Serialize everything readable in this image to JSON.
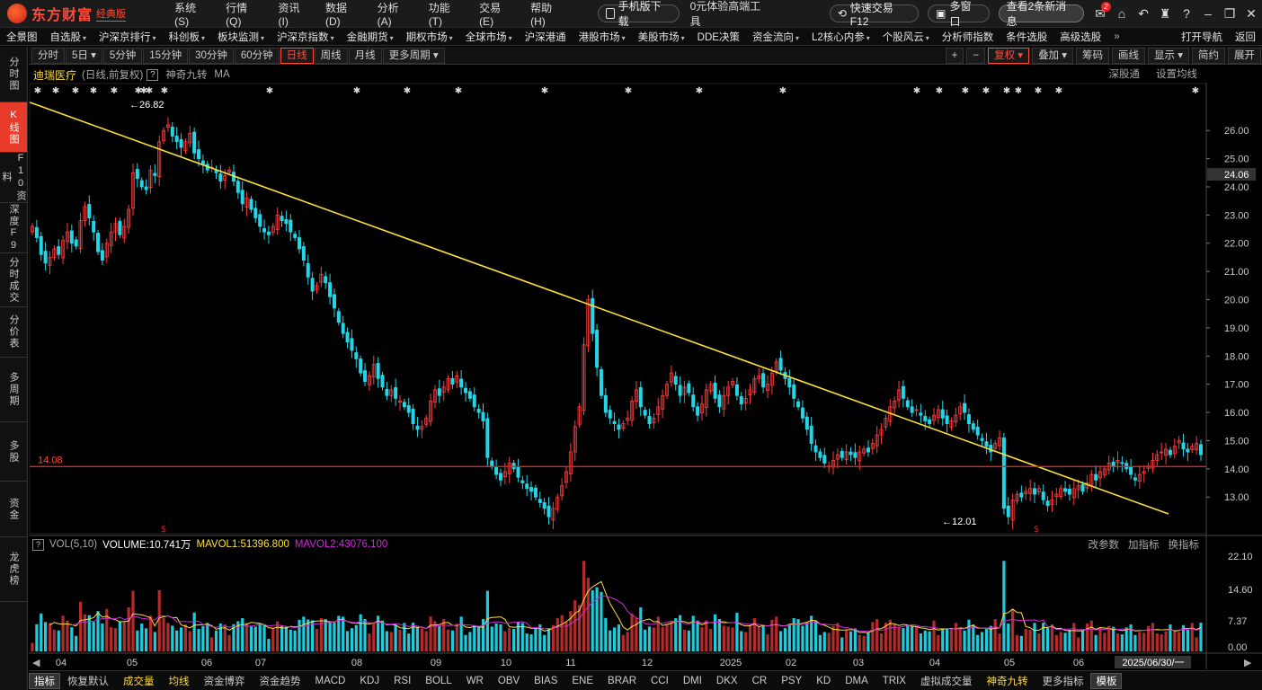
{
  "app": {
    "logo_text": "东方财富",
    "logo_sub": "经典版",
    "menu": [
      "系统(S)",
      "行情(Q)",
      "资讯(I)",
      "数据(D)",
      "分析(A)",
      "功能(T)",
      "交易(E)",
      "帮助(H)"
    ],
    "mobile_btn": "手机版下载",
    "promo": "0元体验高端工具",
    "quick_trade": "快速交易F12",
    "multi_window": "多窗口",
    "news_btn": "查看2条新消息",
    "mail_badge": "2"
  },
  "navbar": {
    "items": [
      "全景图",
      "自选股",
      "沪深京排行",
      "科创板",
      "板块监测",
      "沪深京指数",
      "金融期货",
      "期权市场",
      "全球市场",
      "沪深港通",
      "港股市场",
      "美股市场",
      "DDE决策",
      "资金流向",
      "L2核心内参",
      "个股风云",
      "分析师指数",
      "条件选股",
      "高级选股"
    ],
    "more": "»",
    "right": [
      "打开导航",
      "返回"
    ]
  },
  "sidebar": [
    "分时图",
    "K线图",
    "F10资料",
    "深度F9",
    "分时成交",
    "分价表",
    "多周期",
    "多股",
    "资金",
    "龙虎榜"
  ],
  "period_toolbar": {
    "items": [
      "分时",
      "5日",
      "5分钟",
      "15分钟",
      "30分钟",
      "60分钟",
      "日线",
      "周线",
      "月线",
      "更多周期"
    ],
    "active": "日线",
    "right": [
      "+",
      "−",
      "复权",
      "叠加",
      "筹码",
      "画线",
      "显示",
      "简约",
      "展开"
    ]
  },
  "chart_head": {
    "stock_name": "迪瑞医疗",
    "mode": "(日线,前复权)",
    "help": "?",
    "indicators": [
      "神奇九转",
      "MA"
    ],
    "right": [
      "深股通",
      "设置均线"
    ]
  },
  "vol_head": {
    "name": "VOL(5,10)",
    "volume": "VOLUME:10.741万",
    "mavol1": "MAVOL1:51396.800",
    "mavol2": "MAVOL2:43076.100",
    "right": [
      "改参数",
      "加指标",
      "换指标"
    ]
  },
  "bottom_tabs": [
    "指标",
    "恢复默认",
    "成交量",
    "均线",
    "资金博弈",
    "资金趋势",
    "MACD",
    "KDJ",
    "RSI",
    "BOLL",
    "WR",
    "OBV",
    "BIAS",
    "ENE",
    "BRAR",
    "CCI",
    "DMI",
    "DKX",
    "CR",
    "PSY",
    "KD",
    "DMA",
    "TRIX",
    "虚拟成交量",
    "神奇九转",
    "更多指标",
    "模板"
  ],
  "colors": {
    "up": "#ff3d3d",
    "down": "#22d6e8",
    "trend": "#ffe03a",
    "support": "#e82020",
    "ma1": "#ffe03a",
    "ma2": "#d02bd8"
  },
  "chart_data": {
    "type": "candlestick",
    "y_ticks": [
      "26.00",
      "25.00",
      "24.00",
      "23.00",
      "22.00",
      "21.00",
      "20.00",
      "19.00",
      "18.00",
      "17.00",
      "16.00",
      "15.00",
      "14.00",
      "13.00"
    ],
    "ylim": [
      11.7,
      27.6
    ],
    "current_price": "24.06",
    "support_label": "14.08",
    "support_value": 14.08,
    "high_label": "←26.82",
    "low_label": "←12.01",
    "x_labels": [
      "04",
      "05",
      "06",
      "07",
      "08",
      "09",
      "10",
      "11",
      "12",
      "2025",
      "02",
      "03",
      "04",
      "05",
      "06",
      "2025/06/30/一"
    ],
    "trend_start": [
      0,
      27.0
    ],
    "trend_end": [
      1300,
      12.4
    ],
    "closes": [
      22.6,
      22.2,
      21.6,
      21.3,
      21.5,
      21.8,
      21.6,
      22.1,
      22.4,
      22.0,
      21.9,
      22.8,
      23.3,
      22.9,
      22.4,
      21.7,
      21.4,
      22.0,
      22.4,
      22.7,
      22.3,
      22.6,
      23.2,
      24.5,
      24.3,
      24.0,
      23.9,
      24.6,
      24.4,
      25.6,
      26.0,
      26.2,
      25.8,
      25.6,
      25.4,
      25.6,
      25.9,
      25.2,
      25.0,
      24.8,
      24.6,
      24.7,
      24.5,
      24.2,
      24.4,
      24.6,
      24.2,
      23.8,
      23.4,
      23.6,
      23.2,
      22.9,
      22.6,
      22.4,
      22.3,
      22.6,
      23.0,
      22.8,
      22.7,
      22.4,
      22.2,
      21.8,
      21.4,
      20.8,
      20.3,
      20.5,
      20.9,
      20.6,
      20.1,
      19.7,
      19.2,
      18.8,
      18.5,
      18.2,
      17.9,
      17.4,
      17.1,
      17.3,
      17.7,
      17.2,
      16.9,
      16.6,
      16.8,
      16.5,
      16.4,
      16.2,
      16.0,
      15.6,
      15.4,
      15.5,
      15.8,
      16.4,
      16.8,
      16.6,
      16.9,
      17.2,
      17.0,
      17.3,
      16.9,
      16.7,
      16.5,
      16.2,
      16.0,
      15.7,
      14.4,
      14.1,
      13.8,
      13.6,
      13.9,
      14.2,
      14.0,
      13.7,
      13.5,
      13.3,
      13.2,
      13.0,
      12.8,
      12.6,
      12.3,
      12.6,
      13.0,
      13.4,
      13.9,
      14.6,
      15.5,
      16.2,
      18.4,
      20.0,
      18.8,
      17.6,
      16.6,
      16.0,
      15.8,
      15.6,
      15.4,
      15.6,
      15.8,
      16.4,
      16.8,
      16.2,
      15.9,
      15.6,
      15.8,
      16.2,
      16.6,
      17.0,
      17.4,
      17.0,
      16.6,
      16.9,
      16.7,
      16.2,
      15.9,
      16.3,
      16.8,
      17.0,
      16.5,
      16.2,
      16.6,
      16.9,
      17.1,
      16.6,
      16.3,
      16.5,
      16.8,
      17.2,
      17.3,
      16.9,
      17.0,
      17.4,
      17.8,
      17.5,
      17.2,
      16.9,
      16.5,
      16.2,
      15.8,
      15.4,
      14.9,
      14.6,
      14.4,
      14.2,
      14.1,
      14.3,
      14.5,
      14.4,
      14.6,
      14.5,
      14.4,
      14.6,
      14.7,
      14.6,
      14.9,
      15.2,
      15.4,
      15.8,
      16.2,
      16.4,
      16.8,
      16.5,
      16.2,
      16.0,
      16.1,
      15.9,
      15.7,
      15.6,
      15.9,
      16.1,
      15.8,
      15.6,
      15.7,
      15.9,
      16.2,
      16.0,
      15.6,
      15.4,
      15.2,
      15.0,
      14.8,
      14.6,
      14.9,
      15.1,
      12.6,
      12.3,
      12.9,
      13.1,
      13.0,
      13.2,
      13.3,
      13.1,
      13.3,
      12.9,
      12.7,
      12.9,
      13.1,
      13.3,
      13.2,
      13.1,
      13.3,
      13.4,
      13.2,
      13.5,
      13.8,
      13.6,
      13.9,
      14.0,
      14.2,
      14.1,
      14.3,
      14.2,
      14.0,
      13.8,
      13.6,
      13.8,
      13.9,
      14.1,
      14.3,
      14.5,
      14.6,
      14.7,
      14.5,
      14.8,
      15.0,
      14.7,
      14.6,
      14.8,
      14.9,
      14.5
    ]
  }
}
